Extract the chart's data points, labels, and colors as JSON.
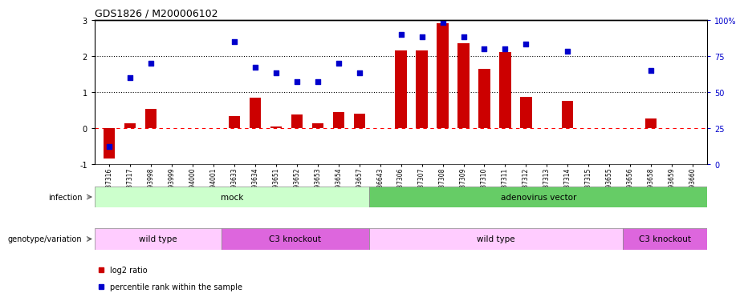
{
  "title": "GDS1826 / M200006102",
  "samples": [
    "GSM87316",
    "GSM87317",
    "GSM93998",
    "GSM93999",
    "GSM94000",
    "GSM94001",
    "GSM93633",
    "GSM93634",
    "GSM93651",
    "GSM93652",
    "GSM93653",
    "GSM93654",
    "GSM93657",
    "GSM86643",
    "GSM87306",
    "GSM87307",
    "GSM87308",
    "GSM87309",
    "GSM87310",
    "GSM87311",
    "GSM87312",
    "GSM87313",
    "GSM87314",
    "GSM87315",
    "GSM93655",
    "GSM93656",
    "GSM93658",
    "GSM93659",
    "GSM93660"
  ],
  "log2_ratio": [
    -0.85,
    0.13,
    0.52,
    0.0,
    0.0,
    0.0,
    0.32,
    0.85,
    0.05,
    0.38,
    0.12,
    0.45,
    0.4,
    0.0,
    2.15,
    2.15,
    2.9,
    2.35,
    1.65,
    2.1,
    0.87,
    0.0,
    0.75,
    0.0,
    0.0,
    0.0,
    0.27,
    0.0,
    0.0
  ],
  "percentile": [
    12,
    60,
    70,
    0,
    0,
    0,
    85,
    67,
    63,
    57,
    57,
    70,
    63,
    0,
    90,
    88,
    98,
    88,
    80,
    80,
    83,
    0,
    78,
    0,
    0,
    0,
    65,
    0,
    0
  ],
  "bar_color": "#cc0000",
  "dot_color": "#0000cc",
  "ylim_left": [
    -1,
    3
  ],
  "ylim_right": [
    0,
    100
  ],
  "yticks_left": [
    -1,
    0,
    1,
    2,
    3
  ],
  "yticks_right": [
    0,
    25,
    50,
    75,
    100
  ],
  "yticklabels_right": [
    "0",
    "25",
    "50",
    "75",
    "100%"
  ],
  "infection_groups": [
    {
      "label": "mock",
      "start": 0,
      "end": 13,
      "color": "#ccffcc"
    },
    {
      "label": "adenovirus vector",
      "start": 13,
      "end": 29,
      "color": "#66cc66"
    }
  ],
  "genotype_groups": [
    {
      "label": "wild type",
      "start": 0,
      "end": 6,
      "color": "#ffccff"
    },
    {
      "label": "C3 knockout",
      "start": 6,
      "end": 13,
      "color": "#dd66dd"
    },
    {
      "label": "wild type",
      "start": 13,
      "end": 25,
      "color": "#ffccff"
    },
    {
      "label": "C3 knockout",
      "start": 25,
      "end": 29,
      "color": "#dd66dd"
    }
  ],
  "infection_label": "infection",
  "genotype_label": "genotype/variation",
  "legend_log2": "log2 ratio",
  "legend_pct": "percentile rank within the sample",
  "background_color": "#ffffff"
}
